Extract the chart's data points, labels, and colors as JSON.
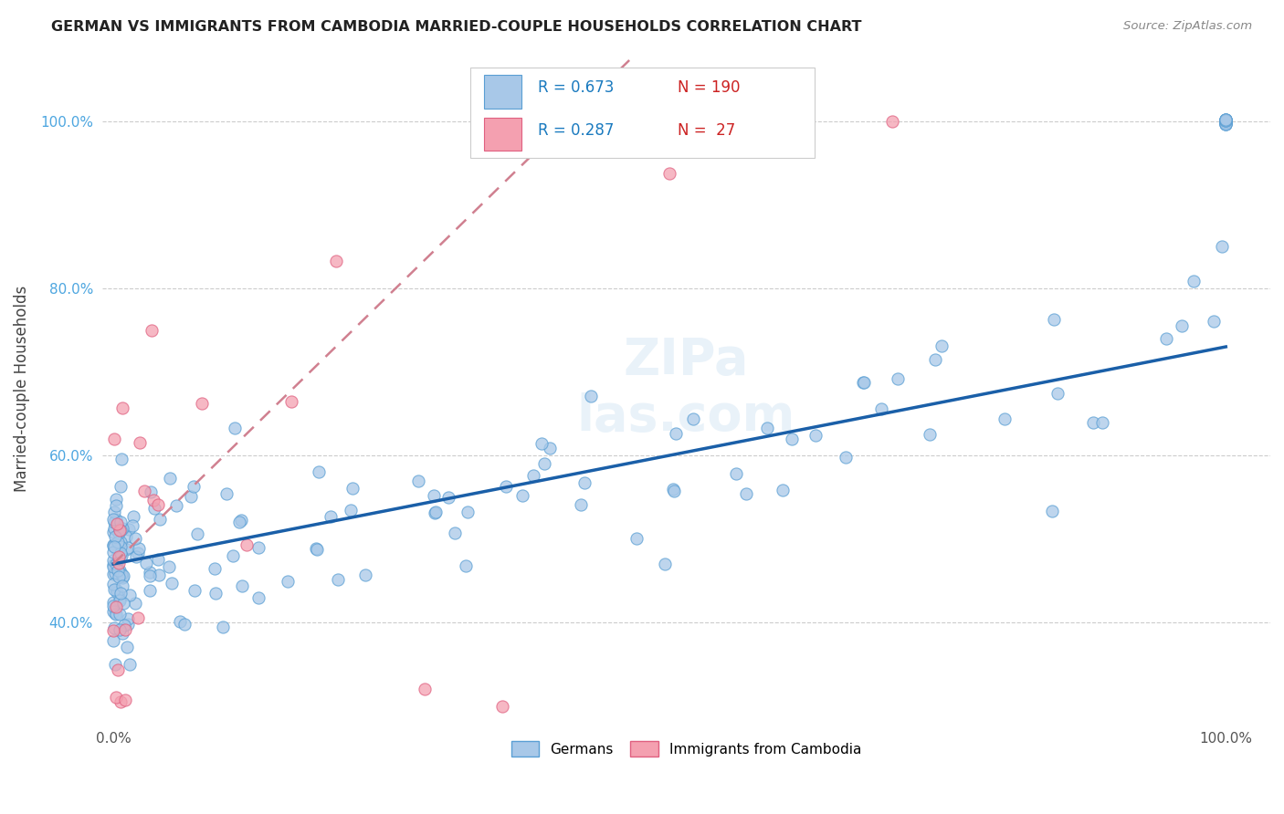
{
  "title": "GERMAN VS IMMIGRANTS FROM CAMBODIA MARRIED-COUPLE HOUSEHOLDS CORRELATION CHART",
  "source": "Source: ZipAtlas.com",
  "ylabel": "Married-couple Households",
  "german_color": "#a8c8e8",
  "german_edge_color": "#5a9fd4",
  "cambodia_color": "#f4a0b0",
  "cambodia_edge_color": "#e06080",
  "german_line_color": "#1a5fa8",
  "cambodia_line_color": "#d08090",
  "german_R": 0.673,
  "german_N": 190,
  "cambodia_R": 0.287,
  "cambodia_N": 27,
  "legend_R_color": "#1a7abf",
  "legend_N_color": "#cc2222",
  "background_color": "#ffffff",
  "grid_color": "#cccccc",
  "watermark_color": "#ddeeff",
  "title_color": "#222222",
  "source_color": "#888888",
  "ylabel_color": "#444444",
  "ytick_color": "#4da6e0",
  "xtick_color": "#555555"
}
